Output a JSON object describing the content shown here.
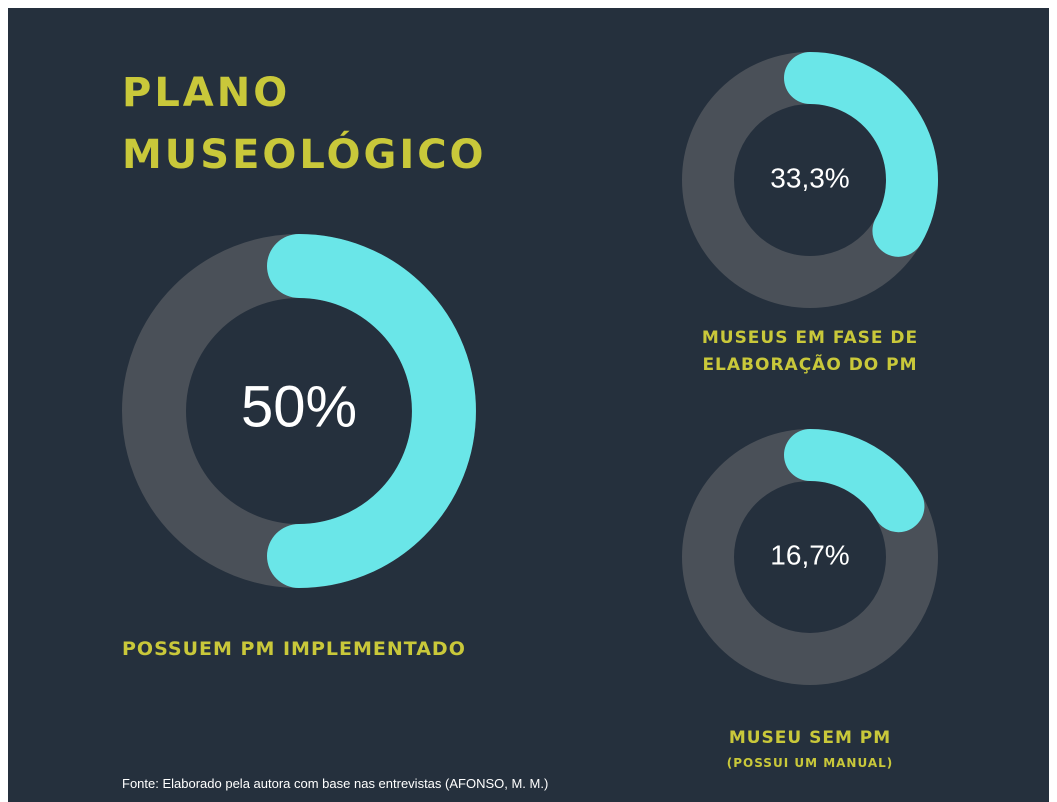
{
  "title": "PLANO MUSEOLÓGICO",
  "source": "Fonte: Elaborado pela autora com base nas entrevistas (AFONSO, M. M.)",
  "chart_data": [
    {
      "type": "donut",
      "label": "POSSUEM PM IMPLEMENTADO",
      "value": 50,
      "value_label": "50%",
      "color": "#6ae6e8",
      "track_color": "#4a5058"
    },
    {
      "type": "donut",
      "label": "MUSEUS EM FASE DE ELABORAÇÃO DO PM",
      "value": 33.3,
      "value_label": "33,3%",
      "color": "#6ae6e8",
      "track_color": "#4a5058"
    },
    {
      "type": "donut",
      "label": "MUSEU SEM PM",
      "sublabel": "(POSSUI UM MANUAL)",
      "value": 16.7,
      "value_label": "16,7%",
      "color": "#6ae6e8",
      "track_color": "#4a5058"
    }
  ]
}
